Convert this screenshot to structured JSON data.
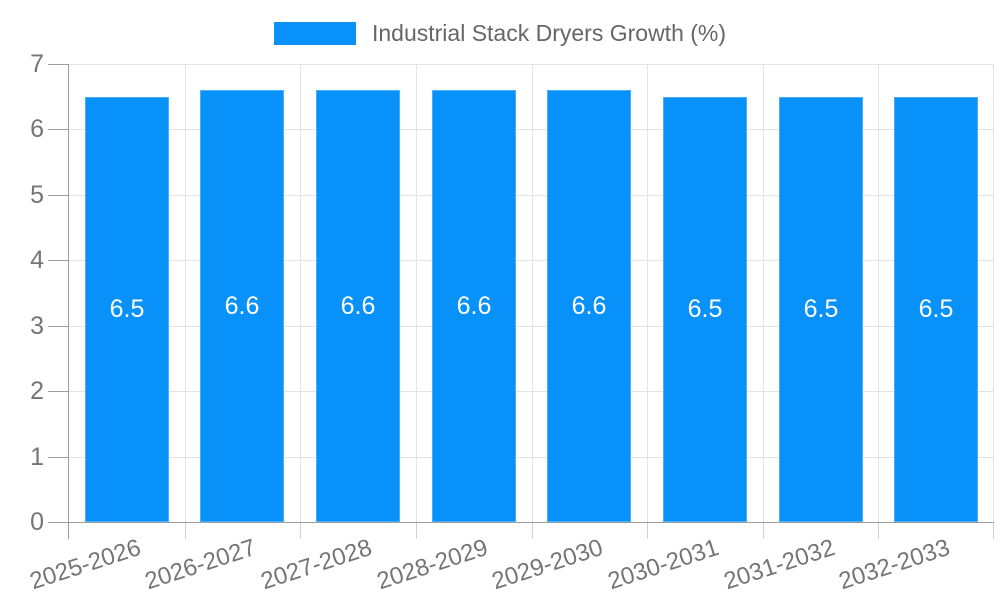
{
  "legend": {
    "label": "Industrial Stack Dryers Growth (%)"
  },
  "colors": {
    "bar": "#0891f9",
    "bar_label": "#ffffff",
    "grid": "#e3e3e3",
    "axis": "#9e9e9e",
    "minor_tick": "#d2d2d2",
    "tick_text": "#757575",
    "legend_text": "#666666"
  },
  "chart_data": {
    "type": "bar",
    "title": "Industrial Stack Dryers Growth (%)",
    "categories": [
      "2025-2026",
      "2026-2027",
      "2027-2028",
      "2028-2029",
      "2029-2030",
      "2030-2031",
      "2031-2032",
      "2032-2033"
    ],
    "values": [
      6.5,
      6.6,
      6.6,
      6.6,
      6.6,
      6.5,
      6.5,
      6.5
    ],
    "xlabel": "",
    "ylabel": "",
    "ylim": [
      0,
      7
    ],
    "yticks": [
      0,
      1,
      2,
      3,
      4,
      5,
      6,
      7
    ],
    "grid": true,
    "legend_position": "top",
    "value_label_position": "inside-center",
    "x_label_rotation_deg": -18
  }
}
